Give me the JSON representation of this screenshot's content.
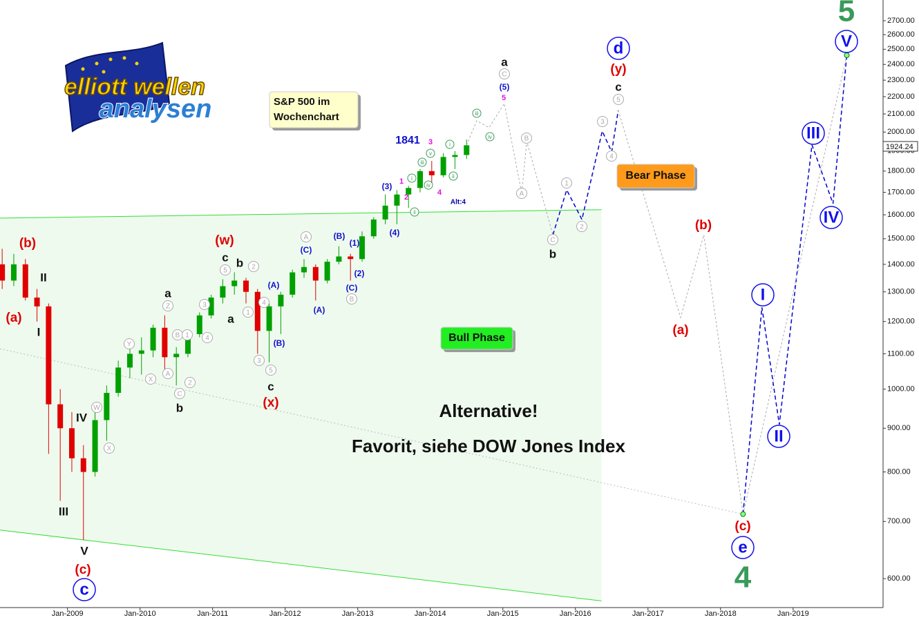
{
  "logo": {
    "line1": "elliott wellen",
    "line2": "analysen"
  },
  "chart_data": {
    "type": "candlestick",
    "log_scale": true,
    "up_color": "#00a000",
    "down_color": "#e00000",
    "x": [
      2008.1,
      2008.26,
      2008.42,
      2008.58,
      2008.74,
      2008.9,
      2009.06,
      2009.22,
      2009.38,
      2009.54,
      2009.7,
      2009.86,
      2010.02,
      2010.18,
      2010.34,
      2010.5,
      2010.66,
      2010.82,
      2010.98,
      2011.14,
      2011.3,
      2011.46,
      2011.62,
      2011.78,
      2011.94,
      2012.1,
      2012.26,
      2012.42,
      2012.58,
      2012.74,
      2012.9,
      2013.06,
      2013.22,
      2013.38,
      2013.54,
      2013.7,
      2013.86,
      2014.02,
      2014.18,
      2014.34,
      2014.5
    ],
    "open": [
      1400,
      1340,
      1400,
      1280,
      1250,
      960,
      900,
      830,
      800,
      920,
      990,
      1060,
      1100,
      1110,
      1180,
      1090,
      1100,
      1160,
      1220,
      1280,
      1320,
      1340,
      1300,
      1170,
      1250,
      1290,
      1370,
      1390,
      1340,
      1410,
      1430,
      1420,
      1510,
      1580,
      1640,
      1690,
      1720,
      1800,
      1780,
      1870,
      1880
    ],
    "high": [
      1460,
      1440,
      1420,
      1310,
      1260,
      1000,
      940,
      860,
      950,
      1010,
      1080,
      1120,
      1150,
      1190,
      1220,
      1120,
      1170,
      1230,
      1290,
      1345,
      1370,
      1350,
      1310,
      1260,
      1300,
      1380,
      1420,
      1400,
      1420,
      1470,
      1440,
      1530,
      1590,
      1690,
      1710,
      1730,
      1810,
      1850,
      1890,
      1900,
      1960
    ],
    "low": [
      1310,
      1320,
      1270,
      1200,
      840,
      740,
      800,
      666,
      790,
      870,
      980,
      1030,
      1040,
      1090,
      1040,
      1010,
      1090,
      1150,
      1210,
      1260,
      1290,
      1260,
      1100,
      1075,
      1160,
      1280,
      1350,
      1270,
      1330,
      1400,
      1340,
      1410,
      1500,
      1560,
      1560,
      1630,
      1700,
      1740,
      1770,
      1810,
      1860
    ],
    "close": [
      1340,
      1400,
      1280,
      1250,
      960,
      900,
      830,
      800,
      920,
      990,
      1060,
      1100,
      1110,
      1180,
      1090,
      1100,
      1160,
      1220,
      1280,
      1320,
      1340,
      1300,
      1170,
      1250,
      1290,
      1370,
      1390,
      1340,
      1410,
      1430,
      1420,
      1510,
      1580,
      1640,
      1690,
      1720,
      1800,
      1780,
      1870,
      1880,
      1930
    ],
    "xlim": [
      2008.07,
      2020.24
    ],
    "xticks": [
      {
        "value": 2009,
        "label": "Jan-2009"
      },
      {
        "value": 2010,
        "label": "Jan-2010"
      },
      {
        "value": 2011,
        "label": "Jan-2011"
      },
      {
        "value": 2012,
        "label": "Jan-2012"
      },
      {
        "value": 2013,
        "label": "Jan-2013"
      },
      {
        "value": 2014,
        "label": "Jan-2014"
      },
      {
        "value": 2015,
        "label": "Jan-2015"
      },
      {
        "value": 2016,
        "label": "Jan-2016"
      },
      {
        "value": 2017,
        "label": "Jan-2017"
      },
      {
        "value": 2018,
        "label": "Jan-2018"
      },
      {
        "value": 2019,
        "label": "Jan-2019"
      }
    ],
    "ylim": [
      555,
      2855
    ],
    "yticks": [
      {
        "value": 600,
        "label": "600.00"
      },
      {
        "value": 700,
        "label": "700.00"
      },
      {
        "value": 800,
        "label": "800.00"
      },
      {
        "value": 900,
        "label": "900.00"
      },
      {
        "value": 1000,
        "label": "1000.00"
      },
      {
        "value": 1100,
        "label": "1100.00"
      },
      {
        "value": 1200,
        "label": "1200.00"
      },
      {
        "value": 1300,
        "label": "1300.00"
      },
      {
        "value": 1400,
        "label": "1400.00"
      },
      {
        "value": 1500,
        "label": "1500.00"
      },
      {
        "value": 1600,
        "label": "1600.00"
      },
      {
        "value": 1700,
        "label": "1700.00"
      },
      {
        "value": 1800,
        "label": "1800.00"
      },
      {
        "value": 1900,
        "label": "1900.00"
      },
      {
        "value": 2000,
        "label": "2000.00"
      },
      {
        "value": 2100,
        "label": "2100.00"
      },
      {
        "value": 2200,
        "label": "2200.00"
      },
      {
        "value": 2300,
        "label": "2300.00"
      },
      {
        "value": 2400,
        "label": "2400.00"
      },
      {
        "value": 2500,
        "label": "2500.00"
      },
      {
        "value": 2600,
        "label": "2600.00"
      },
      {
        "value": 2700,
        "label": "2700.00"
      }
    ],
    "current_price": 1924.24,
    "channel_lines": [
      {
        "color": "#33dd33",
        "x": [
          2008.07,
          2016.36
        ],
        "y": [
          1586,
          1622
        ]
      },
      {
        "color": "#33dd33",
        "x": [
          2008.07,
          2016.36
        ],
        "y": [
          684,
          565
        ]
      }
    ],
    "channel_fill": "#eefaee",
    "trend_line": {
      "color": "#bbbbbb",
      "x": [
        2008.07,
        2018.31
      ],
      "y": [
        1115,
        714
      ]
    },
    "projections": [
      {
        "color": "#aaaaaa",
        "dash": "3,3",
        "x": [
          2014.5,
          2014.64,
          2014.81,
          2015.02,
          2015.26,
          2015.33,
          2015.69
        ],
        "y": [
          1930,
          2062,
          2024,
          2160,
          1696,
          1950,
          1516
        ]
      },
      {
        "color": "#0000cc",
        "dash": "6,4",
        "x": [
          2015.69,
          2015.88,
          2016.09,
          2016.37,
          2016.5,
          2016.59
        ],
        "y": [
          1516,
          1711,
          1580,
          2005,
          1896,
          2120
        ]
      },
      {
        "color": "#aaaaaa",
        "dash": "3,3",
        "x": [
          2016.59,
          2017.45,
          2017.77,
          2018.31
        ],
        "y": [
          2120,
          1213,
          1516,
          714
        ]
      },
      {
        "color": "#0000cc",
        "dash": "6,4",
        "x": [
          2018.31,
          2018.57,
          2018.81,
          2019.26,
          2019.55,
          2019.74
        ],
        "y": [
          714,
          1247,
          909,
          1932,
          1649,
          2460
        ]
      },
      {
        "color": "#aaaaaa",
        "dash": "3,3",
        "x": [
          2018.31,
          2019.74
        ],
        "y": [
          714,
          2460
        ]
      }
    ],
    "wave_labels": {
      "red": [
        "(b)",
        "(a)",
        "(c)",
        "(w)",
        "(x)",
        "(y)",
        "(b)",
        "(a)",
        "(c)"
      ],
      "black": [
        "II",
        "I",
        "III",
        "IV",
        "V",
        "a",
        "b",
        "c",
        "b",
        "a",
        "c",
        "a",
        "c",
        "b"
      ],
      "blue_circle": [
        "c",
        "d",
        "e",
        "I",
        "II",
        "III",
        "IV",
        "V"
      ],
      "green_big": [
        "5",
        "4"
      ],
      "blue": [
        "(5)",
        "(3)",
        "(4)",
        "(1)",
        "(2)",
        "(B)",
        "(C)",
        "(A)",
        "(C)",
        "(A)",
        "(B)",
        "1841"
      ],
      "grey_circle": [
        "C",
        "B",
        "A",
        "C",
        "1",
        "2",
        "3",
        "4",
        "5",
        "A",
        "B",
        "2",
        "1",
        "4",
        "3",
        "5",
        "5",
        "Z",
        "B",
        "1",
        "2",
        "A",
        "C",
        "X",
        "Y",
        "3",
        "4",
        "W",
        "X"
      ],
      "green_circle": [
        "iii",
        "iv",
        "i",
        "ii",
        "v",
        "iii",
        "i",
        "iv",
        "ii"
      ],
      "magenta": [
        "5",
        "3",
        "1",
        "2",
        "4"
      ],
      "navy": [
        "Alt:4"
      ]
    },
    "info_box": [
      "S&P 500 im",
      "Wochenchart"
    ],
    "bear_box": "Bear Phase",
    "bull_box": "Bull Phase",
    "note1": "Alternative!",
    "note2": "Favorit, siehe DOW Jones Index"
  }
}
